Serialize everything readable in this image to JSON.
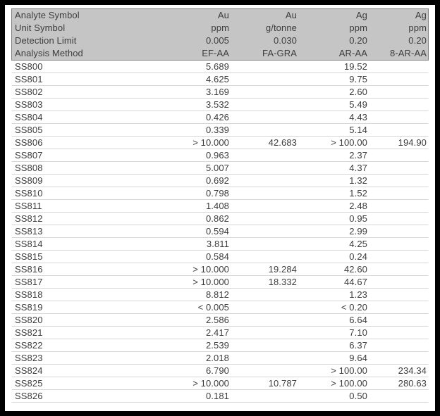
{
  "colors": {
    "frame_border": "#000000",
    "page_background": "#ffffff",
    "header_background": "#c5c5c5",
    "header_border": "#7f7f7f",
    "text": "#3d3d3d",
    "row_divider": "#d6d6d6"
  },
  "table": {
    "header_rows": [
      {
        "label": "Analyte Symbol",
        "values": [
          "Au",
          "Au",
          "Ag",
          "Ag"
        ]
      },
      {
        "label": "Unit Symbol",
        "values": [
          "ppm",
          "g/tonne",
          "ppm",
          "ppm"
        ]
      },
      {
        "label": "Detection Limit",
        "values": [
          "0.005",
          "0.030",
          "0.20",
          "0.20"
        ]
      },
      {
        "label": "Analysis Method",
        "values": [
          "EF-AA",
          "FA-GRA",
          "AR-AA",
          "8-AR-AA"
        ]
      }
    ],
    "rows": [
      {
        "label": "SS800",
        "values": [
          "5.689",
          "",
          "19.52",
          ""
        ]
      },
      {
        "label": "SS801",
        "values": [
          "4.625",
          "",
          "9.75",
          ""
        ]
      },
      {
        "label": "SS802",
        "values": [
          "3.169",
          "",
          "2.60",
          ""
        ]
      },
      {
        "label": "SS803",
        "values": [
          "3.532",
          "",
          "5.49",
          ""
        ]
      },
      {
        "label": "SS804",
        "values": [
          "0.426",
          "",
          "4.43",
          ""
        ]
      },
      {
        "label": "SS805",
        "values": [
          "0.339",
          "",
          "5.14",
          ""
        ]
      },
      {
        "label": "SS806",
        "values": [
          "> 10.000",
          "42.683",
          "> 100.00",
          "194.90"
        ]
      },
      {
        "label": "SS807",
        "values": [
          "0.963",
          "",
          "2.37",
          ""
        ]
      },
      {
        "label": "SS808",
        "values": [
          "5.007",
          "",
          "4.37",
          ""
        ]
      },
      {
        "label": "SS809",
        "values": [
          "0.692",
          "",
          "1.32",
          ""
        ]
      },
      {
        "label": "SS810",
        "values": [
          "0.798",
          "",
          "1.52",
          ""
        ]
      },
      {
        "label": "SS811",
        "values": [
          "1.408",
          "",
          "2.48",
          ""
        ]
      },
      {
        "label": "SS812",
        "values": [
          "0.862",
          "",
          "0.95",
          ""
        ]
      },
      {
        "label": "SS813",
        "values": [
          "0.594",
          "",
          "2.99",
          ""
        ]
      },
      {
        "label": "SS814",
        "values": [
          "3.811",
          "",
          "4.25",
          ""
        ]
      },
      {
        "label": "SS815",
        "values": [
          "0.584",
          "",
          "0.24",
          ""
        ]
      },
      {
        "label": "SS816",
        "values": [
          "> 10.000",
          "19.284",
          "42.60",
          ""
        ]
      },
      {
        "label": "SS817",
        "values": [
          "> 10.000",
          "18.332",
          "44.67",
          ""
        ]
      },
      {
        "label": "SS818",
        "values": [
          "8.812",
          "",
          "1.23",
          ""
        ]
      },
      {
        "label": "SS819",
        "values": [
          "< 0.005",
          "",
          "< 0.20",
          ""
        ]
      },
      {
        "label": "SS820",
        "values": [
          "2.586",
          "",
          "6.64",
          ""
        ]
      },
      {
        "label": "SS821",
        "values": [
          "2.417",
          "",
          "7.10",
          ""
        ]
      },
      {
        "label": "SS822",
        "values": [
          "2.539",
          "",
          "6.37",
          ""
        ]
      },
      {
        "label": "SS823",
        "values": [
          "2.018",
          "",
          "9.64",
          ""
        ]
      },
      {
        "label": "SS824",
        "values": [
          "6.790",
          "",
          "> 100.00",
          "234.34"
        ]
      },
      {
        "label": "SS825",
        "values": [
          "> 10.000",
          "10.787",
          "> 100.00",
          "280.63"
        ]
      },
      {
        "label": "SS826",
        "values": [
          "0.181",
          "",
          "0.50",
          ""
        ]
      }
    ]
  }
}
